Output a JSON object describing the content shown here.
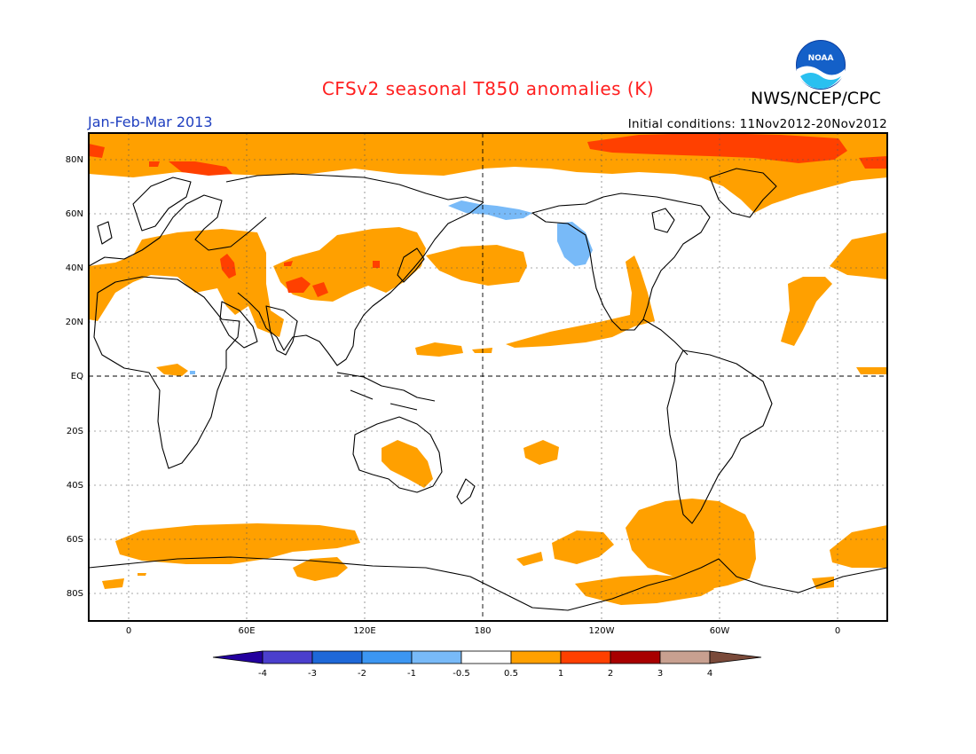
{
  "header": {
    "title": "CFSv2 seasonal T850 anomalies (K)",
    "agency": "NWS/NCEP/CPC",
    "period": "Jan-Feb-Mar 2013",
    "initial_conditions": "Initial conditions: 11Nov2012-20Nov2012",
    "title_color": "#ff2020",
    "period_color": "#2040c0",
    "logo_text": "NOAA"
  },
  "map": {
    "lat_labels": [
      "80N",
      "60N",
      "40N",
      "20N",
      "EQ",
      "20S",
      "40S",
      "60S",
      "80S"
    ],
    "lon_labels": [
      "0",
      "60E",
      "120E",
      "180",
      "120W",
      "60W",
      "0"
    ]
  },
  "legend": {
    "colors": [
      "#23009e",
      "#4b3fcd",
      "#1e68d8",
      "#3c96f2",
      "#78baf8",
      "#ffffff",
      "#ffa000",
      "#ff4000",
      "#a80000",
      "#c8a090",
      "#7a4a3a"
    ],
    "labels": [
      "-4",
      "-3",
      "-2",
      "-1",
      "-0.5",
      "0.5",
      "1",
      "2",
      "3",
      "4"
    ]
  }
}
